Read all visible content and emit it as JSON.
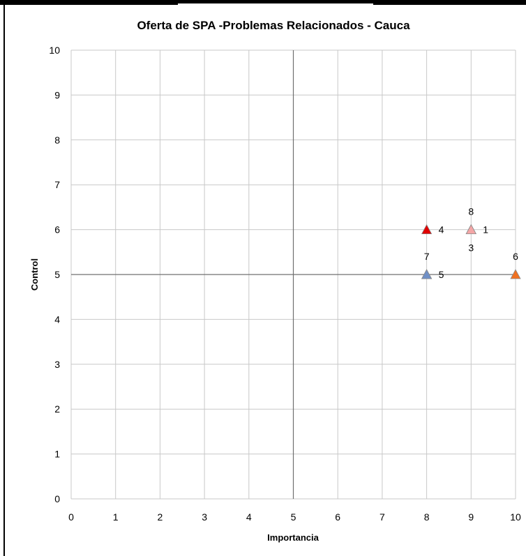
{
  "chart_data": {
    "type": "scatter",
    "title": "Oferta de SPA -Problemas Relacionados - Cauca",
    "xlabel": "Importancia",
    "ylabel": "Control",
    "xlim": [
      0,
      10
    ],
    "ylim": [
      0,
      10
    ],
    "x_ticks": [
      "0",
      "1",
      "2",
      "3",
      "4",
      "5",
      "6",
      "7",
      "8",
      "9",
      "10"
    ],
    "y_ticks": [
      "0",
      "1",
      "2",
      "3",
      "4",
      "5",
      "6",
      "7",
      "8",
      "9",
      "10"
    ],
    "grid": true,
    "marker": "triangle",
    "points": [
      {
        "label": "1",
        "x": 9,
        "y": 6,
        "color": "#e8463a",
        "label_pos": "right"
      },
      {
        "label": "3",
        "x": 9,
        "y": 6,
        "color": "#e8463a",
        "label_pos": "below"
      },
      {
        "label": "4",
        "x": 8,
        "y": 6,
        "color": "#e00000",
        "label_pos": "right"
      },
      {
        "label": "5",
        "x": 8,
        "y": 5,
        "color": "#c00000",
        "label_pos": "right"
      },
      {
        "label": "6",
        "x": 10,
        "y": 5,
        "color": "#f07020",
        "label_pos": "above"
      },
      {
        "label": "7",
        "x": 8,
        "y": 5,
        "color": "#6f8fc6",
        "label_pos": "above"
      },
      {
        "label": "8",
        "x": 9,
        "y": 6,
        "color": "#f4a6a6",
        "label_pos": "above"
      }
    ]
  }
}
